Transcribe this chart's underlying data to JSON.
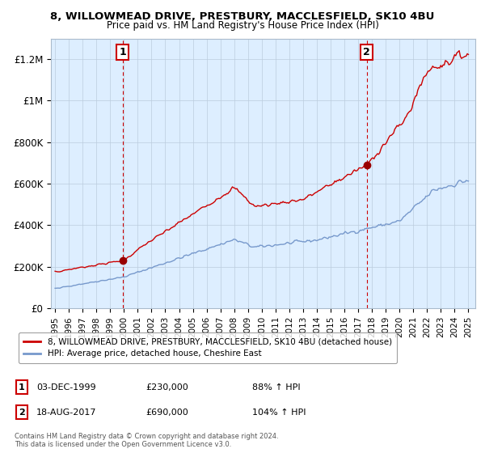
{
  "title_line1": "8, WILLOWMEAD DRIVE, PRESTBURY, MACCLESFIELD, SK10 4BU",
  "title_line2": "Price paid vs. HM Land Registry's House Price Index (HPI)",
  "ylim": [
    0,
    1300000
  ],
  "xlim_start": 1994.7,
  "xlim_end": 2025.5,
  "yticks": [
    0,
    200000,
    400000,
    600000,
    800000,
    1000000,
    1200000
  ],
  "ytick_labels": [
    "£0",
    "£200K",
    "£400K",
    "£600K",
    "£800K",
    "£1M",
    "£1.2M"
  ],
  "xtick_years": [
    1995,
    1996,
    1997,
    1998,
    1999,
    2000,
    2001,
    2002,
    2003,
    2004,
    2005,
    2006,
    2007,
    2008,
    2009,
    2010,
    2011,
    2012,
    2013,
    2014,
    2015,
    2016,
    2017,
    2018,
    2019,
    2020,
    2021,
    2022,
    2023,
    2024,
    2025
  ],
  "sale1_x": 1999.92,
  "sale1_y": 230000,
  "sale1_label": "1",
  "sale1_date": "03-DEC-1999",
  "sale1_price": "£230,000",
  "sale1_hpi": "88% ↑ HPI",
  "sale2_x": 2017.63,
  "sale2_y": 690000,
  "sale2_label": "2",
  "sale2_date": "18-AUG-2017",
  "sale2_price": "£690,000",
  "sale2_hpi": "104% ↑ HPI",
  "line_color_red": "#cc0000",
  "line_color_blue": "#7799cc",
  "marker_color_red": "#990000",
  "vline_color": "#cc0000",
  "bg_plot": "#ddeeff",
  "background_color": "#ffffff",
  "grid_color": "#bbccdd",
  "legend_label_red": "8, WILLOWMEAD DRIVE, PRESTBURY, MACCLESFIELD, SK10 4BU (detached house)",
  "legend_label_blue": "HPI: Average price, detached house, Cheshire East",
  "footnote": "Contains HM Land Registry data © Crown copyright and database right 2024.\nThis data is licensed under the Open Government Licence v3.0."
}
